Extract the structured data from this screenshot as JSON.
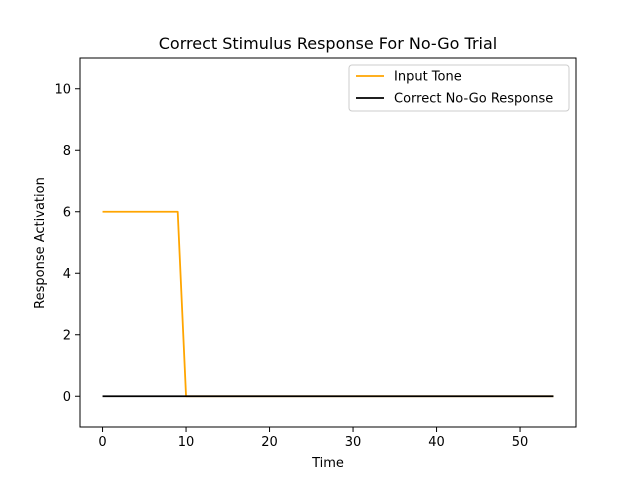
{
  "chart_data": {
    "type": "line",
    "title": "Correct Stimulus Response For No-Go Trial",
    "xlabel": "Time",
    "ylabel": "Response Activation",
    "xlim": [
      -2.7,
      56.7
    ],
    "ylim": [
      -1,
      11
    ],
    "xticks": [
      0,
      10,
      20,
      30,
      40,
      50
    ],
    "yticks": [
      0,
      2,
      4,
      6,
      8,
      10
    ],
    "grid": false,
    "legend_position": "top-right",
    "series": [
      {
        "name": "Input Tone",
        "color": "#ffa500",
        "x": [
          0,
          9,
          10,
          54
        ],
        "y": [
          6,
          6,
          0,
          0
        ]
      },
      {
        "name": "Correct No-Go Response",
        "color": "#000000",
        "x": [
          0,
          54
        ],
        "y": [
          0,
          0
        ]
      }
    ]
  }
}
